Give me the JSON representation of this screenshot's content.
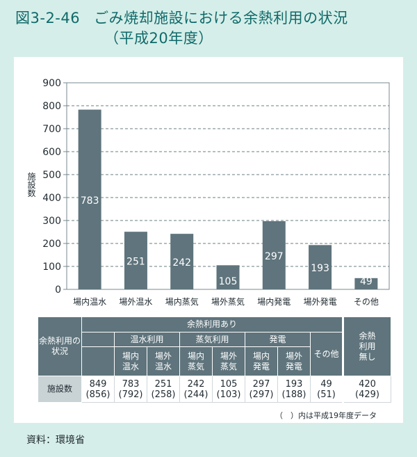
{
  "title": {
    "number": "図3-2-46",
    "main": "ごみ焼却施設における余熱利用の状況",
    "sub": "（平成20年度）"
  },
  "chart_data": {
    "type": "bar",
    "categories": [
      "場内温水",
      "場外温水",
      "場内蒸気",
      "場外蒸気",
      "場内発電",
      "場外発電",
      "その他"
    ],
    "values": [
      783,
      251,
      242,
      105,
      297,
      193,
      49
    ],
    "ylabel": "施設数",
    "ylim": [
      0,
      900
    ],
    "yticks": [
      0,
      100,
      200,
      300,
      400,
      500,
      600,
      700,
      800,
      900
    ],
    "grid": "dashed-horizontal",
    "bar_color": "#5f747c"
  },
  "table": {
    "row_header": "余熱利用の状況",
    "group_header": "余熱利用あり",
    "subgroups": [
      "温水利用",
      "蒸気利用",
      "発電"
    ],
    "columns": [
      "場内\n温水",
      "場外\n温水",
      "場内\n蒸気",
      "場外\n蒸気",
      "場内\n発電",
      "場外\n発電"
    ],
    "other_col": "その他",
    "none_col": "余熱\n利用\n無し",
    "row_label": "施設数",
    "values": [
      {
        "current": "849",
        "previous": "(856)"
      },
      {
        "current": "783",
        "previous": "(792)"
      },
      {
        "current": "251",
        "previous": "(258)"
      },
      {
        "current": "242",
        "previous": "(244)"
      },
      {
        "current": "105",
        "previous": "(103)"
      },
      {
        "current": "297",
        "previous": "(297)"
      },
      {
        "current": "193",
        "previous": "(188)"
      },
      {
        "current": "49",
        "previous": "(51)"
      },
      {
        "current": "420",
        "previous": "(429)"
      }
    ]
  },
  "note": "（　）内は平成19年度データ",
  "source": "資料：環境省"
}
